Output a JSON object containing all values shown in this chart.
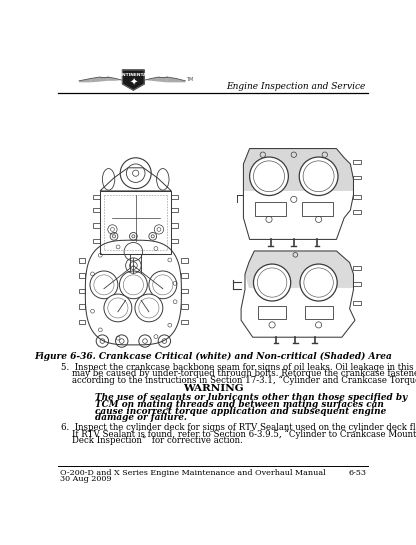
{
  "title_right": "Engine Inspection and Service",
  "footer_left1": "O-200-D and X Series Engine Maintenance and Overhaul Manual",
  "footer_left2": "30 Aug 2009",
  "footer_right": "6-53",
  "fig_caption": "Figure 6-36. Crankcase Critical (white) and Non-critical (Shaded) Area",
  "item5_line1": "5.  Inspect the crankcase backbone seam for signs of oil leaks. Oil leakage in this area",
  "item5_line2": "    may be caused by under-torqued through bolts. Retorque the crankcase fasteners",
  "item5_line3": "    according to the instructions in Section 17-3.1, “Cylinder and Crankcase Torque.”",
  "warning_title": "WARNING",
  "warn_line1": "The use of sealants or lubricants other than those specified by",
  "warn_line2": "TCM on mating threads and between mating surfaces can",
  "warn_line3": "cause incorrect torque application and subsequent engine",
  "warn_line4": "damage or failure.",
  "item6_line1": "6.  Inspect the cylinder deck for signs of RTV Sealant used on the cylinder deck flange.",
  "item6_line2": "    If RTV Sealant is found, refer to Section 6-3.9.5, “Cylinder to Crankcase Mounting",
  "item6_line3": "    Deck Inspection”  for corrective action.",
  "bg_color": "#ffffff",
  "text_color": "#000000",
  "line_color": "#000000",
  "shade_color": "#c8c8c8",
  "draw_color": "#3a3a3a"
}
